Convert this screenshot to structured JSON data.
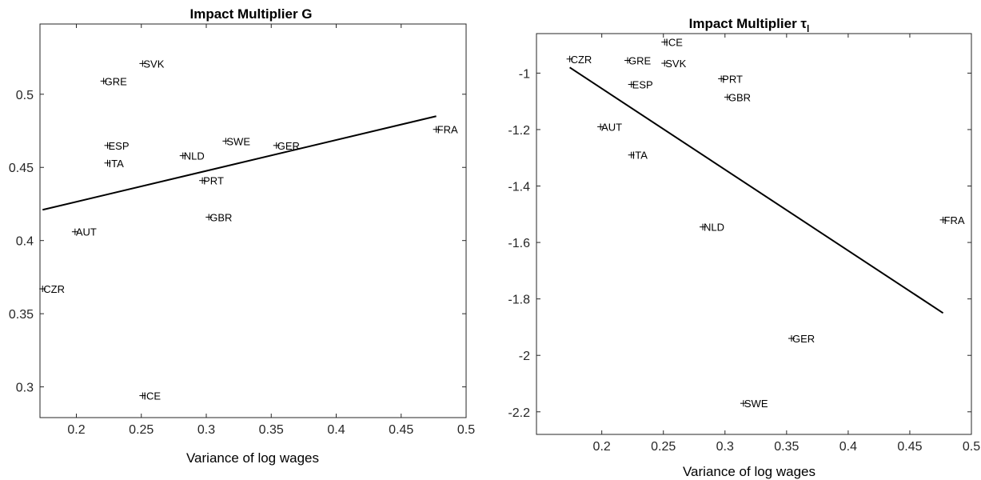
{
  "chart_data": [
    {
      "type": "scatter",
      "title": "Impact Multiplier G",
      "title_subscript": "",
      "xlabel": "Variance of log wages",
      "ylabel": "",
      "xlim": [
        0.172,
        0.5
      ],
      "ylim": [
        0.279,
        0.548
      ],
      "xticks": [
        0.2,
        0.25,
        0.3,
        0.35,
        0.4,
        0.45,
        0.5
      ],
      "xtick_labels": [
        "0.2",
        "0.25",
        "0.3",
        "0.35",
        "0.4",
        "0.45",
        "0.5"
      ],
      "yticks": [
        0.3,
        0.35,
        0.4,
        0.45,
        0.5
      ],
      "ytick_labels": [
        "0.3",
        "0.35",
        "0.4",
        "0.45",
        "0.5"
      ],
      "points": [
        {
          "label": "SVK",
          "x": 0.251,
          "y": 0.521
        },
        {
          "label": "GRE",
          "x": 0.221,
          "y": 0.509
        },
        {
          "label": "ESP",
          "x": 0.224,
          "y": 0.465
        },
        {
          "label": "ITA",
          "x": 0.224,
          "y": 0.453
        },
        {
          "label": "NLD",
          "x": 0.282,
          "y": 0.458
        },
        {
          "label": "SWE",
          "x": 0.315,
          "y": 0.468
        },
        {
          "label": "GER",
          "x": 0.354,
          "y": 0.465
        },
        {
          "label": "FRA",
          "x": 0.477,
          "y": 0.476
        },
        {
          "label": "PRT",
          "x": 0.297,
          "y": 0.441
        },
        {
          "label": "GBR",
          "x": 0.302,
          "y": 0.416
        },
        {
          "label": "AUT",
          "x": 0.199,
          "y": 0.406
        },
        {
          "label": "CZR",
          "x": 0.174,
          "y": 0.367
        },
        {
          "label": "ICE",
          "x": 0.251,
          "y": 0.294
        }
      ],
      "fit_line": {
        "x": [
          0.174,
          0.477
        ],
        "y": [
          0.421,
          0.485
        ]
      }
    },
    {
      "type": "scatter",
      "title": "Impact Multiplier τ",
      "title_subscript": "l",
      "xlabel": "Variance of log wages",
      "ylabel": "",
      "xlim": [
        0.147,
        0.5
      ],
      "ylim": [
        -2.28,
        -0.86
      ],
      "xticks": [
        0.2,
        0.25,
        0.3,
        0.35,
        0.4,
        0.45,
        0.5
      ],
      "xtick_labels": [
        "0.2",
        "0.25",
        "0.3",
        "0.35",
        "0.4",
        "0.45",
        "0.5"
      ],
      "yticks": [
        -2.2,
        -2,
        -1.8,
        -1.6,
        -1.4,
        -1.2,
        -1
      ],
      "ytick_labels": [
        "-2.2",
        "-2",
        "-1.8",
        "-1.6",
        "-1.4",
        "-1.2",
        "-1"
      ],
      "points": [
        {
          "label": "ICE",
          "x": 0.251,
          "y": -0.89
        },
        {
          "label": "CZR",
          "x": 0.174,
          "y": -0.95
        },
        {
          "label": "GRE",
          "x": 0.221,
          "y": -0.955
        },
        {
          "label": "SVK",
          "x": 0.251,
          "y": -0.965
        },
        {
          "label": "PRT",
          "x": 0.297,
          "y": -1.02
        },
        {
          "label": "ESP",
          "x": 0.224,
          "y": -1.04
        },
        {
          "label": "GBR",
          "x": 0.302,
          "y": -1.085
        },
        {
          "label": "AUT",
          "x": 0.199,
          "y": -1.19
        },
        {
          "label": "ITA",
          "x": 0.224,
          "y": -1.29
        },
        {
          "label": "NLD",
          "x": 0.282,
          "y": -1.545
        },
        {
          "label": "FRA",
          "x": 0.477,
          "y": -1.52
        },
        {
          "label": "GER",
          "x": 0.354,
          "y": -1.94
        },
        {
          "label": "SWE",
          "x": 0.315,
          "y": -2.17
        }
      ],
      "fit_line": {
        "x": [
          0.174,
          0.477
        ],
        "y": [
          -0.98,
          -1.85
        ]
      }
    }
  ]
}
